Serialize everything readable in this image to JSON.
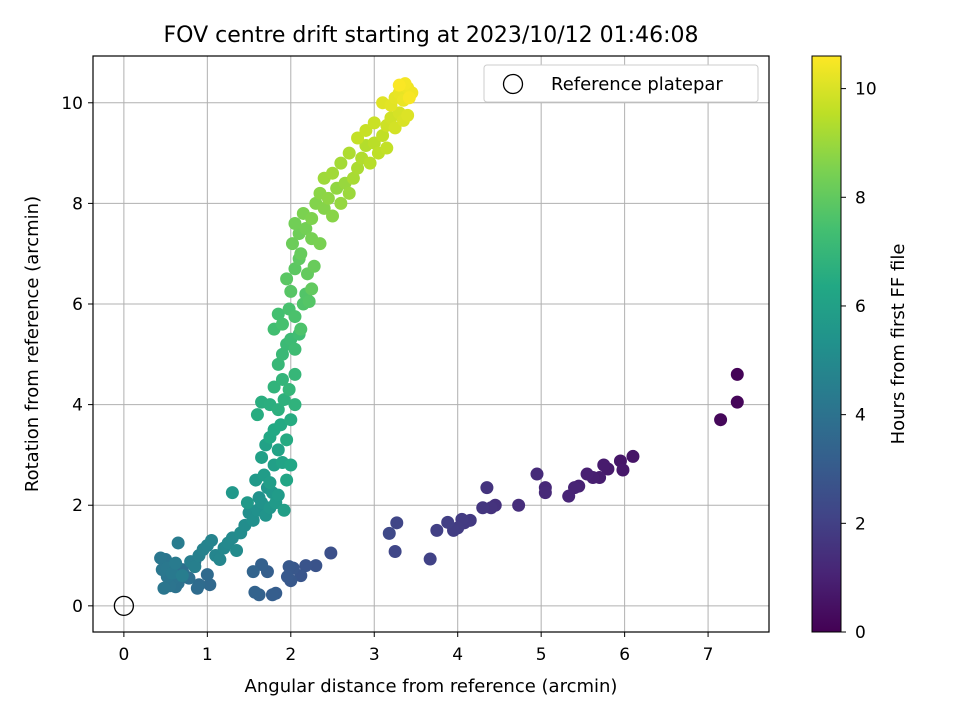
{
  "chart_data": {
    "type": "scatter",
    "title": "FOV centre drift starting at 2023/10/12 01:46:08",
    "xlabel": "Angular distance from reference (arcmin)",
    "ylabel": "Rotation from reference (arcmin)",
    "xlim": [
      -0.37,
      7.73
    ],
    "ylim": [
      -0.52,
      10.93
    ],
    "xticks": [
      "0",
      "1",
      "2",
      "3",
      "4",
      "5",
      "6",
      "7"
    ],
    "yticks": [
      "0",
      "2",
      "4",
      "6",
      "8",
      "10"
    ],
    "grid": true,
    "legend": {
      "position": "top-right",
      "entries": [
        "Reference platepar"
      ]
    },
    "colorbar": {
      "label": "Hours from first FF file",
      "range": [
        0,
        10.6
      ],
      "ticks": [
        "0",
        "2",
        "4",
        "6",
        "8",
        "10"
      ],
      "colormap": "viridis"
    },
    "reference_point": {
      "x": 0,
      "y": 0
    },
    "series": [
      {
        "color_by": "hours",
        "points": [
          [
            7.35,
            4.6,
            0.1
          ],
          [
            7.35,
            4.05,
            0.15
          ],
          [
            7.15,
            3.7,
            0.2
          ],
          [
            6.1,
            2.97,
            0.6
          ],
          [
            5.95,
            2.88,
            0.65
          ],
          [
            5.98,
            2.7,
            0.7
          ],
          [
            5.8,
            2.72,
            0.75
          ],
          [
            5.75,
            2.8,
            0.8
          ],
          [
            5.7,
            2.55,
            0.85
          ],
          [
            5.62,
            2.55,
            0.9
          ],
          [
            5.55,
            2.62,
            0.95
          ],
          [
            5.45,
            2.38,
            1.0
          ],
          [
            5.4,
            2.35,
            1.05
          ],
          [
            5.33,
            2.18,
            1.1
          ],
          [
            5.05,
            2.35,
            1.2
          ],
          [
            5.05,
            2.25,
            1.25
          ],
          [
            4.95,
            2.62,
            1.3
          ],
          [
            4.73,
            2.0,
            1.4
          ],
          [
            4.45,
            2.0,
            1.5
          ],
          [
            4.4,
            1.95,
            1.55
          ],
          [
            4.35,
            2.35,
            1.6
          ],
          [
            4.3,
            1.95,
            1.65
          ],
          [
            4.15,
            1.7,
            1.75
          ],
          [
            4.08,
            1.65,
            1.8
          ],
          [
            4.05,
            1.72,
            1.82
          ],
          [
            4.0,
            1.55,
            1.85
          ],
          [
            3.95,
            1.5,
            1.9
          ],
          [
            3.88,
            1.66,
            1.95
          ],
          [
            3.75,
            1.5,
            2.0
          ],
          [
            3.67,
            0.93,
            2.05
          ],
          [
            3.27,
            1.65,
            2.2
          ],
          [
            3.25,
            1.08,
            2.25
          ],
          [
            3.18,
            1.44,
            2.3
          ],
          [
            2.48,
            1.05,
            2.6
          ],
          [
            2.3,
            0.8,
            2.7
          ],
          [
            2.18,
            0.8,
            2.75
          ],
          [
            2.12,
            0.6,
            2.8
          ],
          [
            2.03,
            0.75,
            2.85
          ],
          [
            2.0,
            0.5,
            2.9
          ],
          [
            1.98,
            0.78,
            2.9
          ],
          [
            1.96,
            0.58,
            2.95
          ],
          [
            1.82,
            0.25,
            3.1
          ],
          [
            1.78,
            0.22,
            3.15
          ],
          [
            1.72,
            0.68,
            3.2
          ],
          [
            1.65,
            0.82,
            3.25
          ],
          [
            1.62,
            0.22,
            3.3
          ],
          [
            1.57,
            0.27,
            3.35
          ],
          [
            1.55,
            0.68,
            3.4
          ],
          [
            1.03,
            0.42,
            3.6
          ],
          [
            1.0,
            0.62,
            3.65
          ],
          [
            0.9,
            0.42,
            3.7
          ],
          [
            0.88,
            0.35,
            3.75
          ],
          [
            0.85,
            0.88,
            3.8
          ],
          [
            0.78,
            0.55,
            3.85
          ],
          [
            0.72,
            0.62,
            3.9
          ],
          [
            0.7,
            0.72,
            3.92
          ],
          [
            0.65,
            0.45,
            3.95
          ],
          [
            0.62,
            0.38,
            4.0
          ],
          [
            0.6,
            0.55,
            4.02
          ],
          [
            0.57,
            0.82,
            4.05
          ],
          [
            0.55,
            0.4,
            4.08
          ],
          [
            0.52,
            0.58,
            4.1
          ],
          [
            0.5,
            0.92,
            4.12
          ],
          [
            0.48,
            0.35,
            4.15
          ],
          [
            0.46,
            0.72,
            4.18
          ],
          [
            0.44,
            0.95,
            4.2
          ],
          [
            0.52,
            0.75,
            4.25
          ],
          [
            0.58,
            0.65,
            4.3
          ],
          [
            0.62,
            0.85,
            4.35
          ],
          [
            0.65,
            1.25,
            4.4
          ],
          [
            0.7,
            0.6,
            4.45
          ],
          [
            0.8,
            0.88,
            4.5
          ],
          [
            0.85,
            0.78,
            4.55
          ],
          [
            0.9,
            1.0,
            4.6
          ],
          [
            0.95,
            1.12,
            4.65
          ],
          [
            1.0,
            1.2,
            4.7
          ],
          [
            1.05,
            1.3,
            4.75
          ],
          [
            1.1,
            1.0,
            4.8
          ],
          [
            1.15,
            0.92,
            4.85
          ],
          [
            1.2,
            1.15,
            4.9
          ],
          [
            1.25,
            1.25,
            4.95
          ],
          [
            1.3,
            1.35,
            5.0
          ],
          [
            1.35,
            1.1,
            5.05
          ],
          [
            1.4,
            1.45,
            5.1
          ],
          [
            1.45,
            1.6,
            5.15
          ],
          [
            1.5,
            1.85,
            5.2
          ],
          [
            1.55,
            1.7,
            5.25
          ],
          [
            1.6,
            1.9,
            5.3
          ],
          [
            1.62,
            2.15,
            5.35
          ],
          [
            1.65,
            2.05,
            5.4
          ],
          [
            1.7,
            1.8,
            5.45
          ],
          [
            1.72,
            2.35,
            5.5
          ],
          [
            1.75,
            1.95,
            5.55
          ],
          [
            1.78,
            2.25,
            5.6
          ],
          [
            1.3,
            2.25,
            5.62
          ],
          [
            1.48,
            2.05,
            5.65
          ],
          [
            1.58,
            2.5,
            5.68
          ],
          [
            1.82,
            2.05,
            5.7
          ],
          [
            1.85,
            2.2,
            5.75
          ],
          [
            1.68,
            2.6,
            5.8
          ],
          [
            1.75,
            2.45,
            5.85
          ],
          [
            1.92,
            1.9,
            5.9
          ],
          [
            1.8,
            2.8,
            5.95
          ],
          [
            1.65,
            2.95,
            6.0
          ],
          [
            1.7,
            3.2,
            6.05
          ],
          [
            1.85,
            3.1,
            6.1
          ],
          [
            1.9,
            2.85,
            6.15
          ],
          [
            1.95,
            2.5,
            6.2
          ],
          [
            2.0,
            2.8,
            6.25
          ],
          [
            1.75,
            3.35,
            6.3
          ],
          [
            1.8,
            3.5,
            6.35
          ],
          [
            1.88,
            3.6,
            6.4
          ],
          [
            1.95,
            3.3,
            6.45
          ],
          [
            2.0,
            3.7,
            6.5
          ],
          [
            1.6,
            3.8,
            6.55
          ],
          [
            1.65,
            4.05,
            6.6
          ],
          [
            1.75,
            4.0,
            6.65
          ],
          [
            1.85,
            3.9,
            6.7
          ],
          [
            1.92,
            4.1,
            6.75
          ],
          [
            2.05,
            4.0,
            6.8
          ],
          [
            1.8,
            4.35,
            6.85
          ],
          [
            1.9,
            4.5,
            6.9
          ],
          [
            1.98,
            4.3,
            6.95
          ],
          [
            2.05,
            4.6,
            7.0
          ],
          [
            1.85,
            4.8,
            7.05
          ],
          [
            1.9,
            5.0,
            7.1
          ],
          [
            1.95,
            5.2,
            7.15
          ],
          [
            2.0,
            5.3,
            7.2
          ],
          [
            2.05,
            5.1,
            7.25
          ],
          [
            2.1,
            5.4,
            7.3
          ],
          [
            1.8,
            5.5,
            7.35
          ],
          [
            1.85,
            5.8,
            7.4
          ],
          [
            1.9,
            5.6,
            7.45
          ],
          [
            1.98,
            5.9,
            7.5
          ],
          [
            2.05,
            5.75,
            7.55
          ],
          [
            2.12,
            5.5,
            7.6
          ],
          [
            2.15,
            6.0,
            7.65
          ],
          [
            2.18,
            6.2,
            7.7
          ],
          [
            2.22,
            6.05,
            7.75
          ],
          [
            2.0,
            6.25,
            7.8
          ],
          [
            1.95,
            6.5,
            7.85
          ],
          [
            2.05,
            6.7,
            7.9
          ],
          [
            2.1,
            6.9,
            7.95
          ],
          [
            2.25,
            6.3,
            8.0
          ],
          [
            2.2,
            6.6,
            8.05
          ],
          [
            2.12,
            7.0,
            8.1
          ],
          [
            2.28,
            6.75,
            8.15
          ],
          [
            2.02,
            7.2,
            8.2
          ],
          [
            2.1,
            7.4,
            8.25
          ],
          [
            2.05,
            7.6,
            8.3
          ],
          [
            2.18,
            7.5,
            8.35
          ],
          [
            2.25,
            7.3,
            8.4
          ],
          [
            2.35,
            7.2,
            8.45
          ],
          [
            2.15,
            7.8,
            8.5
          ],
          [
            2.25,
            7.7,
            8.55
          ],
          [
            2.3,
            8.0,
            8.6
          ],
          [
            2.4,
            7.9,
            8.65
          ],
          [
            2.5,
            7.75,
            8.7
          ],
          [
            2.35,
            8.2,
            8.75
          ],
          [
            2.45,
            8.1,
            8.8
          ],
          [
            2.55,
            8.3,
            8.85
          ],
          [
            2.6,
            8.0,
            8.9
          ],
          [
            2.65,
            8.4,
            8.95
          ],
          [
            2.7,
            8.2,
            9.0
          ],
          [
            2.4,
            8.5,
            9.05
          ],
          [
            2.5,
            8.6,
            9.1
          ],
          [
            2.6,
            8.8,
            9.15
          ],
          [
            2.75,
            8.5,
            9.2
          ],
          [
            2.8,
            8.7,
            9.25
          ],
          [
            2.7,
            9.0,
            9.3
          ],
          [
            2.85,
            8.9,
            9.35
          ],
          [
            2.9,
            9.15,
            9.4
          ],
          [
            2.95,
            8.8,
            9.45
          ],
          [
            3.0,
            9.2,
            9.5
          ],
          [
            3.05,
            9.0,
            9.55
          ],
          [
            3.1,
            9.35,
            9.6
          ],
          [
            3.15,
            9.1,
            9.62
          ],
          [
            2.8,
            9.3,
            9.65
          ],
          [
            2.9,
            9.45,
            9.7
          ],
          [
            3.0,
            9.6,
            9.75
          ],
          [
            3.15,
            9.55,
            9.8
          ],
          [
            3.2,
            9.7,
            9.85
          ],
          [
            3.25,
            9.5,
            9.9
          ],
          [
            3.3,
            9.8,
            9.95
          ],
          [
            3.35,
            9.65,
            10.0
          ],
          [
            3.4,
            9.75,
            10.05
          ],
          [
            3.1,
            10.0,
            10.1
          ],
          [
            3.2,
            9.95,
            10.15
          ],
          [
            3.25,
            10.1,
            10.2
          ],
          [
            3.3,
            10.2,
            10.25
          ],
          [
            3.35,
            10.05,
            10.3
          ],
          [
            3.4,
            10.3,
            10.35
          ],
          [
            3.45,
            10.2,
            10.4
          ],
          [
            3.37,
            10.38,
            10.45
          ],
          [
            3.42,
            10.1,
            10.5
          ],
          [
            3.3,
            10.35,
            10.55
          ]
        ]
      }
    ]
  }
}
